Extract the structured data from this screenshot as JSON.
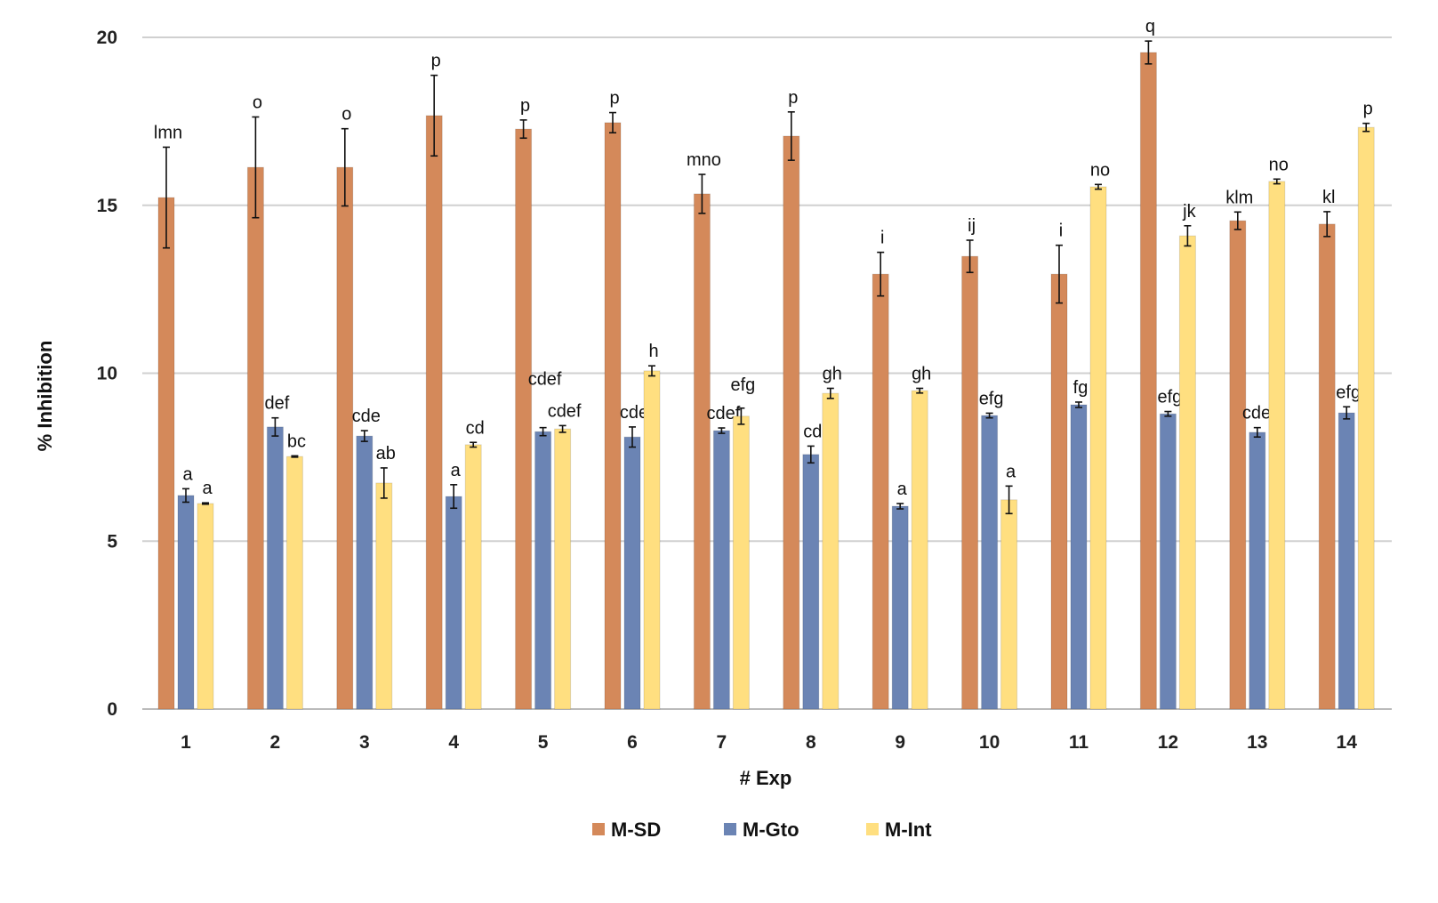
{
  "chart_data": {
    "type": "bar",
    "xlabel": "# Exp",
    "ylabel": "% Inhibition",
    "ylim": [
      0,
      20
    ],
    "yticks": [
      0,
      5,
      10,
      15,
      20
    ],
    "grid": true,
    "legend_position": "bottom",
    "categories": [
      "1",
      "2",
      "3",
      "4",
      "5",
      "6",
      "7",
      "8",
      "9",
      "10",
      "11",
      "12",
      "13",
      "14"
    ],
    "series": [
      {
        "name": "M-SD",
        "color": "#D4895A",
        "values": [
          15.23,
          16.13,
          16.13,
          17.67,
          17.27,
          17.46,
          15.34,
          17.06,
          12.95,
          13.48,
          12.95,
          19.55,
          14.54,
          14.44
        ],
        "errors": [
          1.5,
          1.5,
          1.15,
          1.2,
          0.27,
          0.3,
          0.58,
          0.72,
          0.65,
          0.48,
          0.86,
          0.34,
          0.26,
          0.37
        ],
        "letters": [
          "lmn",
          "o",
          "o",
          "p",
          "p",
          "p",
          "mno",
          "p",
          "i",
          "ij",
          "i",
          "q",
          "klm",
          "kl"
        ]
      },
      {
        "name": "M-Gto",
        "color": "#6B84B4",
        "values": [
          6.36,
          8.4,
          8.13,
          6.33,
          8.26,
          8.1,
          8.29,
          7.58,
          6.04,
          8.74,
          9.06,
          8.79,
          8.24,
          8.82
        ],
        "errors": [
          0.2,
          0.27,
          0.16,
          0.35,
          0.12,
          0.3,
          0.08,
          0.25,
          0.08,
          0.07,
          0.08,
          0.07,
          0.14,
          0.18
        ],
        "letters": [
          "a",
          "def",
          "cde",
          "a",
          "cdef",
          "cde",
          "cdef",
          "cd",
          "a",
          "efg",
          "fg",
          "efg",
          "cdef",
          "efg"
        ]
      },
      {
        "name": "M-Int",
        "color": "#FFDF80",
        "values": [
          6.12,
          7.52,
          6.73,
          7.87,
          8.34,
          10.07,
          8.72,
          9.4,
          9.48,
          6.23,
          15.55,
          14.09,
          15.71,
          17.32
        ],
        "errors": [
          0.02,
          0.02,
          0.45,
          0.07,
          0.1,
          0.15,
          0.24,
          0.15,
          0.07,
          0.41,
          0.07,
          0.3,
          0.07,
          0.12
        ],
        "letters": [
          "a",
          "bc",
          "ab",
          "cd",
          "cdef",
          "h",
          "efg",
          "gh",
          "gh",
          "a",
          "no",
          "jk",
          "no",
          "p"
        ]
      }
    ]
  }
}
